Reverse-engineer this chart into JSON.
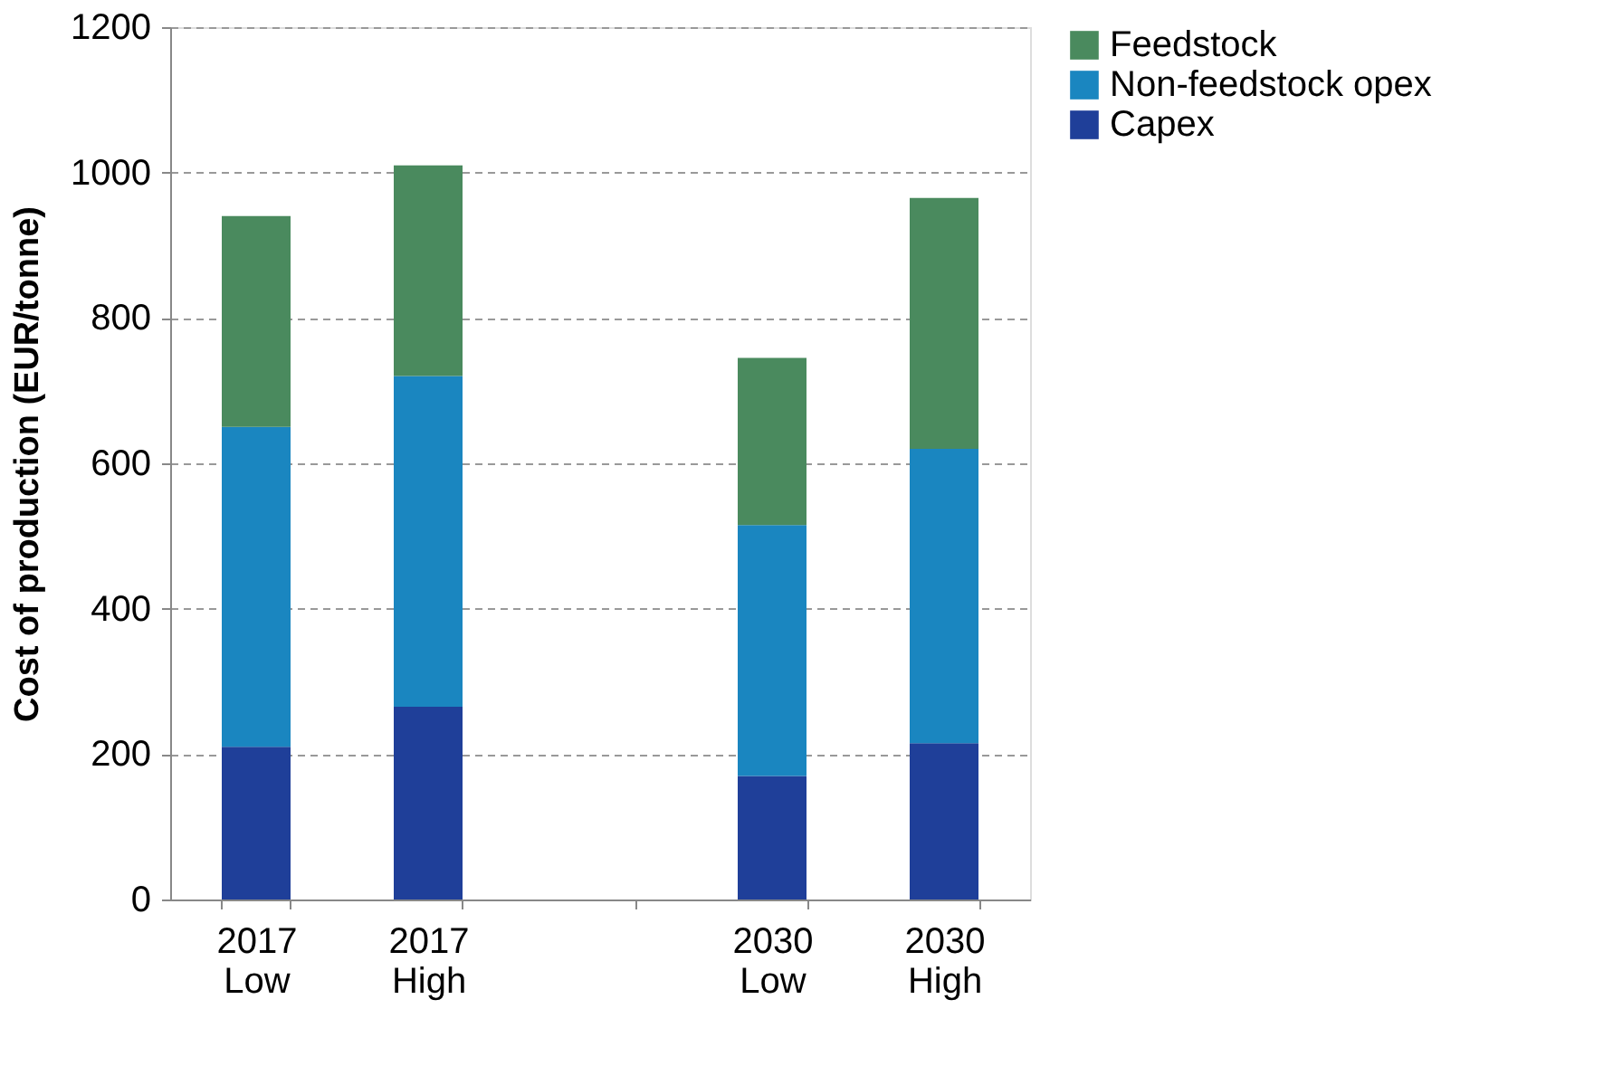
{
  "chart_data": {
    "type": "bar",
    "stacked": true,
    "ylabel": "Cost of production (EUR/tonne)",
    "categories": [
      "2017 Low",
      "2017 High",
      null,
      "2030 Low",
      "2030 High"
    ],
    "series": [
      {
        "name": "Capex",
        "color": "#1f3f99",
        "values": [
          210,
          265,
          null,
          170,
          215
        ]
      },
      {
        "name": "Non-feedstock opex",
        "color": "#1a86c0",
        "values": [
          440,
          455,
          null,
          345,
          405
        ]
      },
      {
        "name": "Feedstock",
        "color": "#4a8a5e",
        "values": [
          290,
          290,
          null,
          230,
          345
        ]
      }
    ],
    "ylim": [
      0,
      1200
    ],
    "yticks": [
      0,
      200,
      400,
      600,
      800,
      1000,
      1200
    ],
    "grid": "y",
    "legend": "right"
  }
}
